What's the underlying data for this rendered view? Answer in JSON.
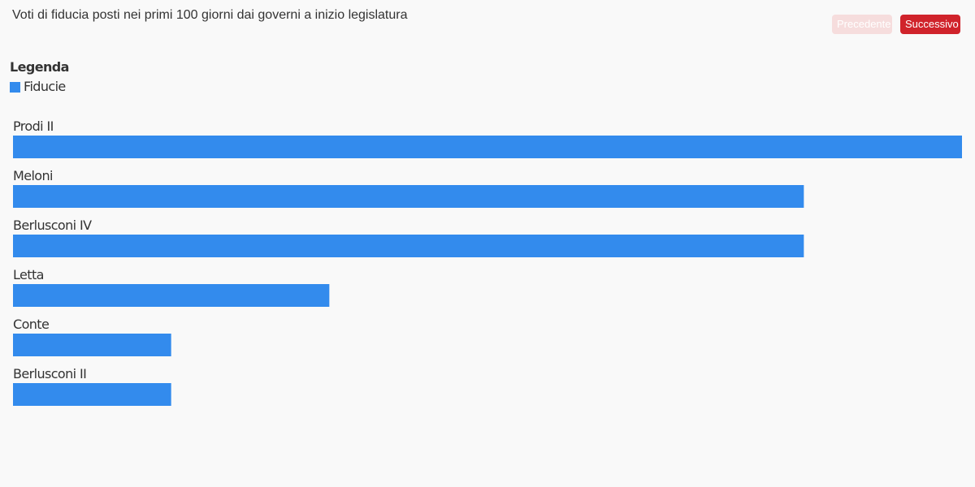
{
  "header": {
    "title": "Voti di fiducia posti nei primi 100 giorni dai governi a inizio legislatura",
    "prev_label": "Precedente",
    "next_label": "Successivo"
  },
  "legend": {
    "title": "Legenda",
    "items": [
      {
        "label": "Fiducie",
        "color": "#338bed"
      }
    ]
  },
  "colors": {
    "bar": "#338bed",
    "background": "#f9f9f9",
    "accent": "#d0232b"
  },
  "chart_data": {
    "type": "bar",
    "orientation": "horizontal",
    "title": "Voti di fiducia posti nei primi 100 giorni dai governi a inizio legislatura",
    "categories": [
      "Prodi II",
      "Meloni",
      "Berlusconi IV",
      "Letta",
      "Conte",
      "Berlusconi II"
    ],
    "series": [
      {
        "name": "Fiducie",
        "values": [
          6,
          5,
          5,
          2,
          1,
          1
        ]
      }
    ],
    "xlim": [
      0,
      6
    ],
    "grid": false,
    "legend_position": "top-left"
  }
}
